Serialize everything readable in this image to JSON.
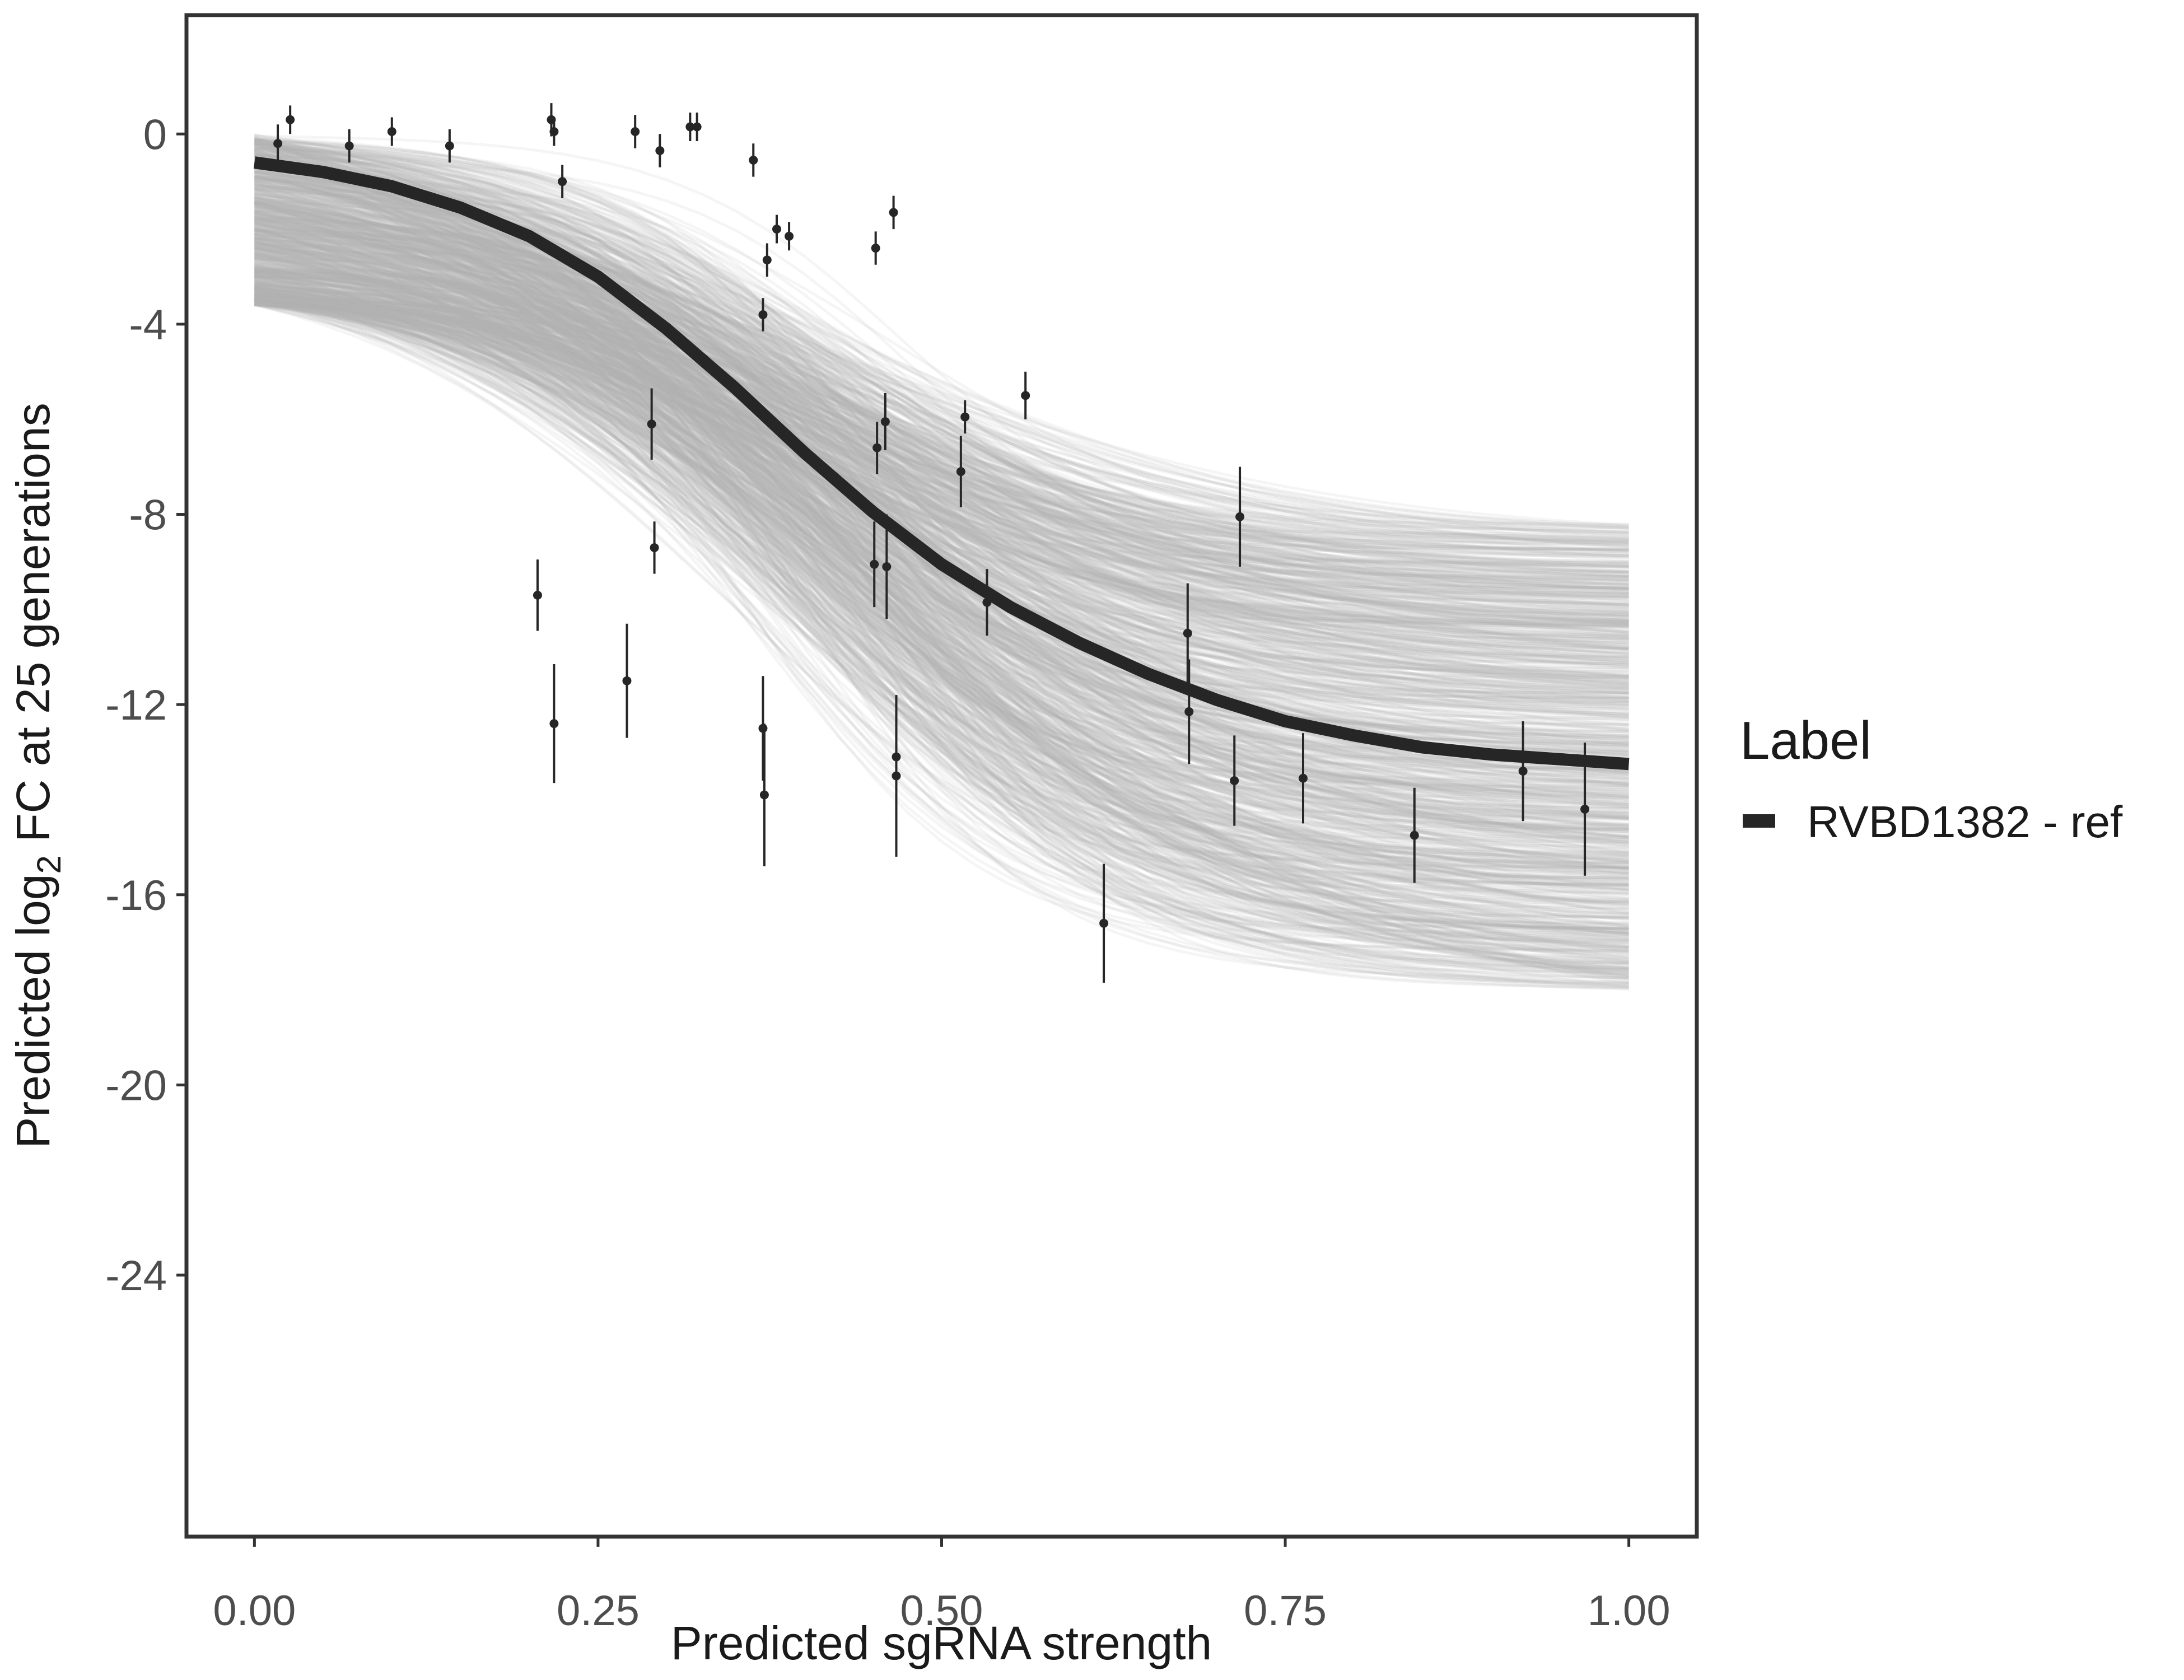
{
  "chart_data": {
    "type": "line",
    "xlabel": "Predicted sgRNA strength",
    "ylabel": {
      "prefix": "Predicted  log",
      "subscript": "2",
      "suffix": " FC at 25 generations"
    },
    "xlim": [
      0.0,
      1.0
    ],
    "ylim": [
      -29.5,
      2.5
    ],
    "x_ticks": [
      0.0,
      0.25,
      0.5,
      0.75,
      1.0
    ],
    "x_tick_labels": [
      "0.00",
      "0.25",
      "0.50",
      "0.75",
      "1.00"
    ],
    "y_ticks": [
      0,
      -4,
      -8,
      -12,
      -16,
      -20,
      -24
    ],
    "y_tick_labels": [
      "0",
      "-4",
      "-8",
      "-12",
      "-16",
      "-20",
      "-24"
    ],
    "grid": false,
    "legend": {
      "title": "Label",
      "position": "right",
      "entries": [
        {
          "label": "RVBD1382 - ref",
          "color": "#262626"
        }
      ]
    },
    "series": [
      {
        "name": "RVBD1382 - ref",
        "kind": "fitted_curve",
        "color": "#262626",
        "x": [
          0.0,
          0.05,
          0.1,
          0.15,
          0.2,
          0.25,
          0.3,
          0.35,
          0.4,
          0.45,
          0.5,
          0.55,
          0.6,
          0.65,
          0.7,
          0.75,
          0.8,
          0.85,
          0.9,
          0.95,
          1.0
        ],
        "y": [
          -0.6,
          -0.8,
          -1.1,
          -1.55,
          -2.15,
          -3.0,
          -4.1,
          -5.35,
          -6.7,
          -7.95,
          -9.05,
          -9.95,
          -10.7,
          -11.35,
          -11.9,
          -12.35,
          -12.65,
          -12.9,
          -13.05,
          -13.15,
          -13.25
        ]
      }
    ],
    "posterior_draws": {
      "color": "#b3b3b3",
      "count": 1000,
      "y_at_x0_range": [
        -3.6,
        0.0
      ],
      "y_at_x1_range": [
        -18.0,
        -8.2
      ]
    },
    "points": [
      {
        "x": 0.017,
        "y": -0.2,
        "err": 0.4
      },
      {
        "x": 0.026,
        "y": 0.3,
        "err": 0.3
      },
      {
        "x": 0.069,
        "y": -0.25,
        "err": 0.35
      },
      {
        "x": 0.1,
        "y": 0.05,
        "err": 0.3
      },
      {
        "x": 0.142,
        "y": -0.25,
        "err": 0.35
      },
      {
        "x": 0.206,
        "y": -9.7,
        "err": 0.75
      },
      {
        "x": 0.216,
        "y": 0.3,
        "err": 0.35
      },
      {
        "x": 0.218,
        "y": 0.05,
        "err": 0.3
      },
      {
        "x": 0.218,
        "y": -12.4,
        "err": 1.25
      },
      {
        "x": 0.224,
        "y": -1.0,
        "err": 0.35
      },
      {
        "x": 0.271,
        "y": -11.5,
        "err": 1.2
      },
      {
        "x": 0.277,
        "y": 0.05,
        "err": 0.35
      },
      {
        "x": 0.289,
        "y": -6.1,
        "err": 0.75
      },
      {
        "x": 0.291,
        "y": -8.7,
        "err": 0.55
      },
      {
        "x": 0.295,
        "y": -0.35,
        "err": 0.35
      },
      {
        "x": 0.317,
        "y": 0.15,
        "err": 0.3
      },
      {
        "x": 0.322,
        "y": 0.15,
        "err": 0.3
      },
      {
        "x": 0.363,
        "y": -0.55,
        "err": 0.35
      },
      {
        "x": 0.37,
        "y": -3.8,
        "err": 0.35
      },
      {
        "x": 0.37,
        "y": -12.5,
        "err": 1.1
      },
      {
        "x": 0.371,
        "y": -13.9,
        "err": 1.5
      },
      {
        "x": 0.373,
        "y": -2.65,
        "err": 0.35
      },
      {
        "x": 0.38,
        "y": -2.0,
        "err": 0.3
      },
      {
        "x": 0.389,
        "y": -2.15,
        "err": 0.3
      },
      {
        "x": 0.451,
        "y": -9.05,
        "err": 0.9
      },
      {
        "x": 0.452,
        "y": -2.4,
        "err": 0.35
      },
      {
        "x": 0.453,
        "y": -6.6,
        "err": 0.55
      },
      {
        "x": 0.459,
        "y": -6.05,
        "err": 0.6
      },
      {
        "x": 0.46,
        "y": -9.1,
        "err": 1.1
      },
      {
        "x": 0.465,
        "y": -1.65,
        "err": 0.35
      },
      {
        "x": 0.467,
        "y": -13.1,
        "err": 1.2
      },
      {
        "x": 0.467,
        "y": -13.5,
        "err": 1.7
      },
      {
        "x": 0.514,
        "y": -7.1,
        "err": 0.75
      },
      {
        "x": 0.517,
        "y": -5.95,
        "err": 0.35
      },
      {
        "x": 0.533,
        "y": -9.85,
        "err": 0.7
      },
      {
        "x": 0.561,
        "y": -5.5,
        "err": 0.5
      },
      {
        "x": 0.618,
        "y": -16.6,
        "err": 1.25
      },
      {
        "x": 0.679,
        "y": -10.5,
        "err": 1.05
      },
      {
        "x": 0.68,
        "y": -12.15,
        "err": 1.1
      },
      {
        "x": 0.713,
        "y": -13.6,
        "err": 0.95
      },
      {
        "x": 0.717,
        "y": -8.05,
        "err": 1.05
      },
      {
        "x": 0.763,
        "y": -13.55,
        "err": 0.95
      },
      {
        "x": 0.844,
        "y": -14.75,
        "err": 1.0
      },
      {
        "x": 0.923,
        "y": -13.4,
        "err": 1.05
      },
      {
        "x": 0.968,
        "y": -14.2,
        "err": 1.4
      }
    ]
  }
}
